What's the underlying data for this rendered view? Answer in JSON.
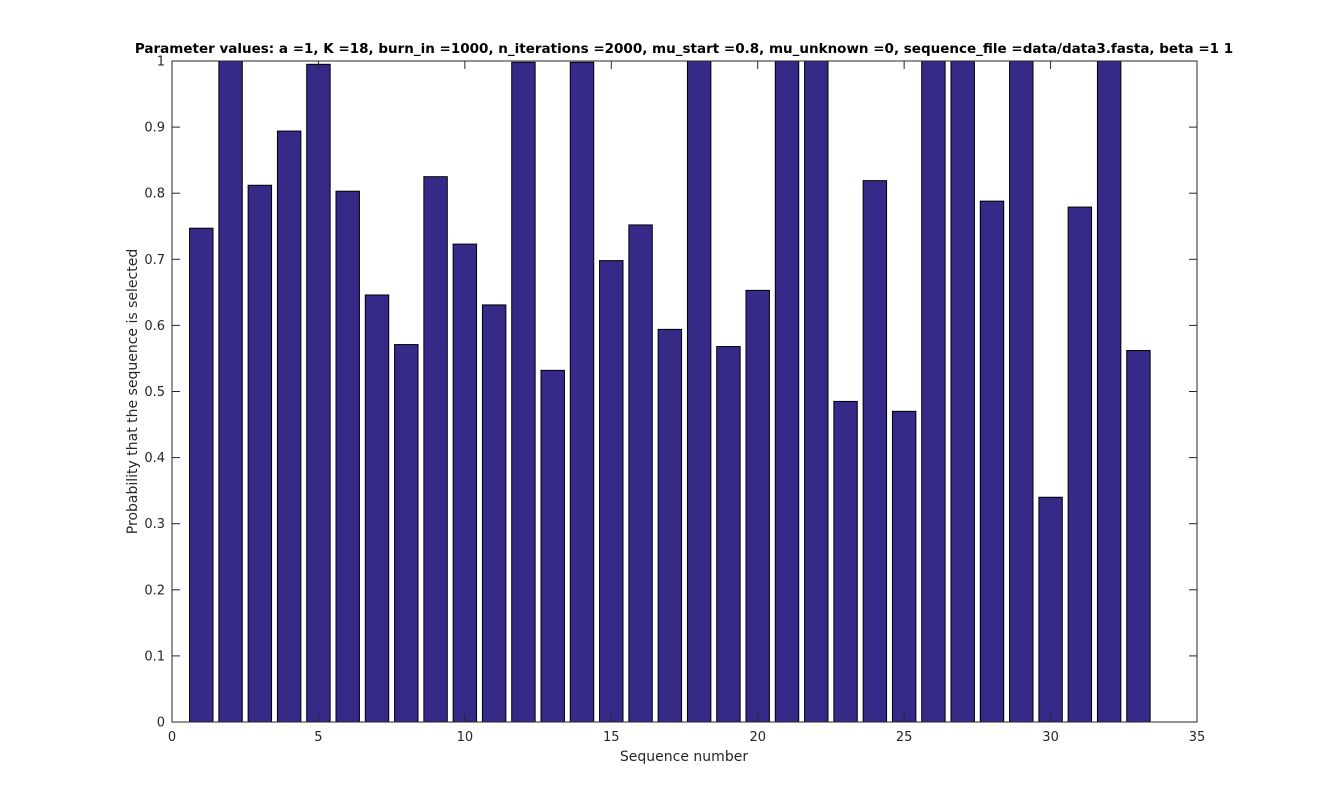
{
  "chart_data": {
    "type": "bar",
    "title": "Parameter values: a =1, K =18, burn_in =1000, n_iterations =2000, mu_start =0.8, mu_unknown =0, sequence_file =data/data3.fasta, beta =1  1",
    "xlabel": "Sequence number",
    "ylabel": "Probability that the sequence is selected",
    "xlim": [
      0,
      35
    ],
    "ylim": [
      0,
      1
    ],
    "xticks": [
      0,
      5,
      10,
      15,
      20,
      25,
      30,
      35
    ],
    "xtick_labels": [
      "0",
      "5",
      "10",
      "15",
      "20",
      "25",
      "30",
      "35"
    ],
    "yticks": [
      0,
      0.1,
      0.2,
      0.3,
      0.4,
      0.5,
      0.6,
      0.7,
      0.8,
      0.9,
      1
    ],
    "ytick_labels": [
      "0",
      "0.1",
      "0.2",
      "0.3",
      "0.4",
      "0.5",
      "0.6",
      "0.7",
      "0.8",
      "0.9",
      "1"
    ],
    "grid": false,
    "bar_color": "#352a87",
    "categories": [
      1,
      2,
      3,
      4,
      5,
      6,
      7,
      8,
      9,
      10,
      11,
      12,
      13,
      14,
      15,
      16,
      17,
      18,
      19,
      20,
      21,
      22,
      23,
      24,
      25,
      26,
      27,
      28,
      29,
      30,
      31,
      32,
      33
    ],
    "values": [
      0.747,
      1.0,
      0.812,
      0.894,
      0.995,
      0.803,
      0.646,
      0.571,
      0.825,
      0.723,
      0.631,
      0.998,
      0.532,
      0.998,
      0.698,
      0.752,
      0.594,
      1.0,
      0.568,
      0.653,
      1.0,
      1.0,
      0.485,
      0.819,
      0.47,
      1.0,
      1.0,
      0.788,
      1.0,
      0.34,
      0.779,
      1.0,
      0.562
    ]
  }
}
